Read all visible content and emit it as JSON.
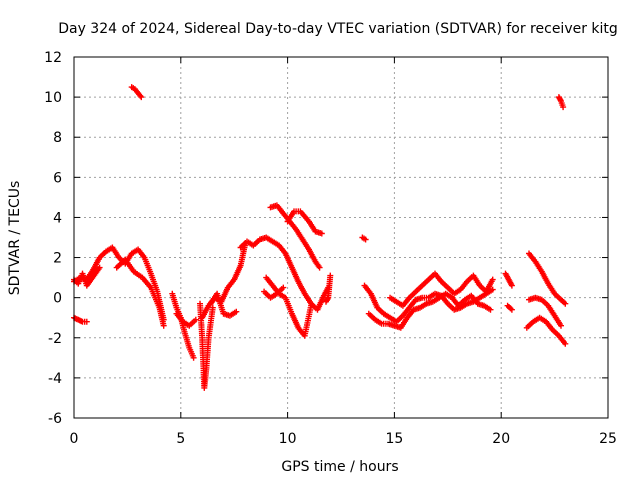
{
  "chart_data": {
    "type": "scatter",
    "title": "Day 324 of 2024, Sidereal Day-to-day VTEC variation (SDTVAR) for receiver kitg",
    "xlabel": "GPS time / hours",
    "ylabel": "SDTVAR / TECUs",
    "xlim": [
      0,
      25
    ],
    "ylim": [
      -6,
      12
    ],
    "xticks": [
      0,
      5,
      10,
      15,
      20,
      25
    ],
    "yticks": [
      -6,
      -4,
      -2,
      0,
      2,
      4,
      6,
      8,
      10,
      12
    ],
    "grid": true,
    "marker": "plus",
    "color": "#ff0000",
    "series": [
      {
        "name": "SDTVAR",
        "segments": [
          {
            "x": [
              0.0,
              0.3,
              0.6,
              0.9,
              1.2,
              1.5,
              1.8,
              2.1,
              2.4,
              2.7,
              3.0,
              3.3,
              3.6,
              3.9,
              4.2
            ],
            "y": [
              0.8,
              1.0,
              0.9,
              1.4,
              2.0,
              2.3,
              2.5,
              2.0,
              1.7,
              2.2,
              2.4,
              2.0,
              1.2,
              0.3,
              -1.1
            ]
          },
          {
            "x": [
              0.0,
              0.2,
              0.4,
              0.6,
              0.8,
              1.0,
              1.2
            ],
            "y": [
              0.9,
              0.7,
              1.2,
              0.6,
              0.9,
              1.2,
              1.5
            ]
          },
          {
            "x": [
              2.0,
              2.4,
              2.8,
              3.2,
              3.6,
              4.0,
              4.2
            ],
            "y": [
              1.5,
              1.9,
              1.3,
              1.0,
              0.5,
              -0.5,
              -1.4
            ]
          },
          {
            "x": [
              0.0,
              0.2,
              0.4,
              0.6
            ],
            "y": [
              -1.0,
              -1.1,
              -1.2,
              -1.2
            ]
          },
          {
            "x": [
              2.7,
              2.85,
              3.0,
              3.15
            ],
            "y": [
              10.5,
              10.4,
              10.2,
              10.0
            ]
          },
          {
            "x": [
              4.6,
              4.8,
              5.0,
              5.2,
              5.4,
              5.6
            ],
            "y": [
              0.2,
              -0.5,
              -1.0,
              -1.8,
              -2.5,
              -3.0
            ]
          },
          {
            "x": [
              4.8,
              5.1,
              5.4,
              5.7
            ],
            "y": [
              -0.8,
              -1.2,
              -1.4,
              -1.1
            ]
          },
          {
            "x": [
              5.9,
              6.0,
              6.1,
              6.2,
              6.3,
              6.5
            ],
            "y": [
              -0.3,
              -2.0,
              -4.5,
              -3.5,
              -2.0,
              -0.5
            ]
          },
          {
            "x": [
              6.0,
              6.3,
              6.6,
              6.9,
              7.2,
              7.5,
              7.8,
              8.0
            ],
            "y": [
              -1.0,
              -0.4,
              0.0,
              -0.2,
              0.5,
              0.9,
              1.6,
              2.6
            ]
          },
          {
            "x": [
              6.4,
              6.7,
              7.0,
              7.3,
              7.6
            ],
            "y": [
              -0.3,
              0.2,
              -0.8,
              -0.9,
              -0.7
            ]
          },
          {
            "x": [
              7.8,
              8.1,
              8.4,
              8.7,
              9.0,
              9.3,
              9.6,
              9.9,
              10.2,
              10.5,
              10.8,
              11.1,
              11.4,
              11.7,
              11.9
            ],
            "y": [
              2.5,
              2.8,
              2.6,
              2.9,
              3.0,
              2.8,
              2.6,
              2.2,
              1.5,
              0.8,
              0.2,
              -0.3,
              -0.6,
              0.1,
              0.5
            ]
          },
          {
            "x": [
              9.2,
              9.5,
              9.8,
              10.1,
              10.4,
              10.7,
              11.0,
              11.3,
              11.5
            ],
            "y": [
              4.5,
              4.6,
              4.2,
              3.8,
              3.4,
              2.9,
              2.4,
              1.8,
              1.5
            ]
          },
          {
            "x": [
              10.0,
              10.3,
              10.6,
              11.0,
              11.3,
              11.6
            ],
            "y": [
              3.8,
              4.3,
              4.3,
              3.8,
              3.3,
              3.2
            ]
          },
          {
            "x": [
              9.0,
              9.3,
              9.6,
              9.9,
              10.2,
              10.5,
              10.8,
              11.1
            ],
            "y": [
              1.0,
              0.6,
              0.2,
              0.0,
              -0.8,
              -1.5,
              -1.9,
              -0.4
            ]
          },
          {
            "x": [
              8.9,
              9.2,
              9.5,
              9.8
            ],
            "y": [
              0.3,
              0.0,
              0.2,
              0.5
            ]
          },
          {
            "x": [
              11.8,
              11.9,
              12.0
            ],
            "y": [
              -0.2,
              0.0,
              1.1
            ]
          },
          {
            "x": [
              13.5,
              13.65
            ],
            "y": [
              3.0,
              2.9
            ]
          },
          {
            "x": [
              13.6,
              13.9,
              14.2,
              14.5,
              14.8,
              15.1,
              15.4,
              15.7,
              16.0,
              16.3,
              16.6,
              16.9,
              17.2,
              17.5,
              17.8,
              18.1,
              18.4,
              18.7,
              19.0,
              19.3,
              19.6
            ],
            "y": [
              0.6,
              0.2,
              -0.5,
              -0.8,
              -1.0,
              -1.2,
              -0.9,
              -0.5,
              -0.1,
              0.0,
              0.0,
              0.2,
              0.1,
              -0.3,
              -0.6,
              -0.5,
              -0.3,
              -0.2,
              0.0,
              0.2,
              0.4
            ]
          },
          {
            "x": [
              13.8,
              14.1,
              14.4,
              14.7,
              15.0,
              15.3,
              15.6,
              15.9,
              16.2,
              16.5,
              16.8,
              17.1,
              17.4,
              17.7,
              18.0,
              18.3,
              18.6,
              18.9,
              19.2,
              19.5
            ],
            "y": [
              -0.8,
              -1.1,
              -1.3,
              -1.3,
              -1.4,
              -1.5,
              -1.0,
              -0.6,
              -0.5,
              -0.3,
              -0.2,
              0.0,
              0.2,
              0.0,
              -0.4,
              -0.1,
              0.1,
              -0.3,
              -0.4,
              -0.6
            ]
          },
          {
            "x": [
              14.8,
              15.1,
              15.4,
              15.7,
              16.0,
              16.3,
              16.6,
              16.9,
              17.2,
              17.5,
              17.8,
              18.1,
              18.4,
              18.7,
              19.0,
              19.3,
              19.6
            ],
            "y": [
              0.0,
              -0.2,
              -0.4,
              0.0,
              0.3,
              0.6,
              0.9,
              1.2,
              0.8,
              0.5,
              0.2,
              0.4,
              0.8,
              1.1,
              0.6,
              0.3,
              0.9
            ]
          },
          {
            "x": [
              20.2,
              20.35,
              20.5
            ],
            "y": [
              1.2,
              0.9,
              0.6
            ]
          },
          {
            "x": [
              20.3,
              20.5
            ],
            "y": [
              -0.4,
              -0.6
            ]
          },
          {
            "x": [
              21.3,
              21.6,
              21.9,
              22.2,
              22.5,
              22.8,
              23.0
            ],
            "y": [
              2.2,
              1.8,
              1.3,
              0.7,
              0.2,
              -0.1,
              -0.3
            ]
          },
          {
            "x": [
              21.3,
              21.6,
              21.9,
              22.2,
              22.5,
              22.8
            ],
            "y": [
              -0.1,
              0.0,
              -0.1,
              -0.4,
              -0.9,
              -1.4
            ]
          },
          {
            "x": [
              21.2,
              21.5,
              21.8,
              22.1,
              22.4,
              22.7,
              23.0
            ],
            "y": [
              -1.5,
              -1.2,
              -1.0,
              -1.2,
              -1.6,
              -1.9,
              -2.3
            ]
          },
          {
            "x": [
              22.7,
              22.8,
              22.9
            ],
            "y": [
              10.0,
              9.8,
              9.5
            ]
          }
        ]
      }
    ]
  }
}
